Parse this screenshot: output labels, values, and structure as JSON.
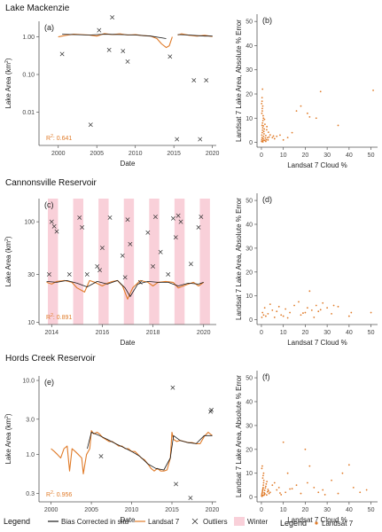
{
  "colors": {
    "landsat": "#e07b29",
    "insitu": "#1a1a1a",
    "outlier": "#333333",
    "winter": "#f9d0d9",
    "axis": "#555555"
  },
  "legend_main": {
    "title": "Legend",
    "items": [
      {
        "label": "Bias Corrected in situ",
        "kind": "line",
        "color": "#1a1a1a"
      },
      {
        "label": "Landsat 7",
        "kind": "line",
        "color": "#e07b29"
      },
      {
        "label": "Outliers",
        "kind": "x",
        "color": "#333333"
      },
      {
        "label": "Winter",
        "kind": "patch",
        "color": "#f9d0d9"
      }
    ]
  },
  "legend_right": {
    "title": "Legend",
    "items": [
      {
        "label": "Landsat 7",
        "kind": "dot",
        "color": "#e07b29"
      }
    ]
  },
  "chart_data": [
    {
      "panel": "(a)",
      "title": "Lake Mackenzie",
      "type": "line",
      "scale": "log",
      "xlabel": "Date",
      "ylabel": "Lake Area (km",
      "ylabel_sup": "2",
      "ylabel_end": ")",
      "r2_label": "R",
      "r2_value": ": 0.641",
      "xlim": [
        1997.5,
        2020.5
      ],
      "ylim": [
        0.0013,
        2.6
      ],
      "xticks": [
        2000,
        2005,
        2010,
        2015,
        2020
      ],
      "yticks": [
        1.0,
        0.1,
        0.01
      ],
      "ytick_labels": [
        "1.00",
        "0.10",
        "0.01"
      ],
      "series": [
        {
          "kind": "landsat",
          "segments": [
            {
              "x": [
                2000.0,
                2001.0,
                2002.0,
                2003.0,
                2004.0,
                2005.0,
                2006.0,
                2007.0,
                2008.0,
                2009.0,
                2010.0,
                2011.0,
                2012.0,
                2012.8,
                2013.4,
                2014.0,
                2014.4,
                2014.8
              ],
              "y": [
                1.0,
                1.1,
                1.18,
                1.15,
                1.12,
                1.05,
                1.22,
                1.15,
                1.2,
                1.12,
                1.15,
                1.08,
                1.05,
                0.9,
                0.65,
                0.52,
                0.58,
                1.0
              ]
            },
            {
              "x": [
                2015.5,
                2016.0,
                2017.0,
                2018.0,
                2019.0,
                2020.0
              ],
              "y": [
                1.12,
                1.2,
                1.1,
                1.05,
                1.1,
                1.02
              ]
            }
          ]
        },
        {
          "kind": "insitu",
          "segments": [
            {
              "x": [
                2000.5,
                2002.0,
                2004.0,
                2006.0,
                2008.0,
                2010.0,
                2012.0,
                2014.0
              ],
              "y": [
                1.18,
                1.15,
                1.12,
                1.18,
                1.15,
                1.12,
                1.05,
                0.9
              ]
            },
            {
              "x": [
                2015.5,
                2017.0,
                2019.0,
                2020.0
              ],
              "y": [
                1.15,
                1.12,
                1.05,
                1.05
              ]
            }
          ]
        }
      ],
      "outliers": {
        "x": [
          2000.5,
          2004.2,
          2005.3,
          2006.6,
          2007.0,
          2008.4,
          2009.0,
          2014.5,
          2015.4,
          2017.6,
          2018.4,
          2019.2
        ],
        "y": [
          0.35,
          0.0046,
          1.5,
          0.45,
          3.3,
          0.42,
          0.22,
          0.3,
          0.0019,
          0.07,
          0.0019,
          0.07
        ]
      }
    },
    {
      "panel": "(b)",
      "type": "scatter",
      "xlabel": "Landsat 7 Cloud %",
      "ylabel": "Landsat 7 Lake Area, Absolute % Error",
      "xlim": [
        -2,
        53
      ],
      "ylim": [
        -2,
        53
      ],
      "xticks": [
        0,
        10,
        20,
        30,
        40,
        50
      ],
      "yticks": [
        0,
        10,
        20,
        30,
        40,
        50
      ],
      "points": {
        "x": [
          0.1,
          0.2,
          0.3,
          0.2,
          0.4,
          0.5,
          0.6,
          0.3,
          0.8,
          1.0,
          1.2,
          0.5,
          0.7,
          0.9,
          1.5,
          1.8,
          2.0,
          0.2,
          0.4,
          0.6,
          1.1,
          1.3,
          2.5,
          0.3,
          0.5,
          0.8,
          3.0,
          3.5,
          4.0,
          5.0,
          6.0,
          0.2,
          0.6,
          1.2,
          2.2,
          2.8,
          7.0,
          8.5,
          10.0,
          12.0,
          14.0,
          16.0,
          18.0,
          21.0,
          22.0,
          25.0,
          27.0,
          35.0,
          51.0,
          0.4,
          1.6,
          2.4,
          3.2,
          5.5,
          0.9,
          1.4,
          2.0,
          0.1,
          0.3,
          0.7
        ],
        "y": [
          0.5,
          1.2,
          2.0,
          3.0,
          4.0,
          5.0,
          6.0,
          7.0,
          1.5,
          2.5,
          3.5,
          8.0,
          9.0,
          10.0,
          0.8,
          1.8,
          2.8,
          12.0,
          13.0,
          15.0,
          4.5,
          5.5,
          6.5,
          17.0,
          22.0,
          11.0,
          1.0,
          2.2,
          3.1,
          2.0,
          1.5,
          0.3,
          0.6,
          0.9,
          1.1,
          1.9,
          2.5,
          3.0,
          1.0,
          2.0,
          4.0,
          13.0,
          15.0,
          12.0,
          10.5,
          10.0,
          21.0,
          7.0,
          21.5,
          14.0,
          7.5,
          5.2,
          4.2,
          2.6,
          6.8,
          9.5,
          0.4,
          16.0,
          18.5,
          0.2
        ]
      }
    },
    {
      "panel": "(c)",
      "title": "Cannonsville Reservoir",
      "type": "line",
      "scale": "log",
      "xlabel": "Date",
      "ylabel": "Lake Area (km",
      "ylabel_sup": "2",
      "ylabel_end": ")",
      "r2_label": "R",
      "r2_value": ": 0.891",
      "xlim": [
        2013.5,
        2020.5
      ],
      "ylim": [
        9.5,
        170
      ],
      "xticks": [
        2014,
        2016,
        2018,
        2020
      ],
      "yticks": [
        100,
        30,
        10
      ],
      "ytick_labels": [
        "100",
        "30",
        "10"
      ],
      "winter": [
        [
          2013.85,
          2014.25
        ],
        [
          2014.85,
          2015.25
        ],
        [
          2015.85,
          2016.25
        ],
        [
          2016.85,
          2017.25
        ],
        [
          2017.85,
          2018.25
        ],
        [
          2018.85,
          2019.25
        ],
        [
          2019.85,
          2020.25
        ]
      ],
      "series": [
        {
          "kind": "landsat",
          "segments": [
            {
              "x": [
                2013.8,
                2014.0,
                2014.2,
                2014.5,
                2014.8,
                2015.0,
                2015.3,
                2015.5,
                2015.7,
                2016.0,
                2016.2,
                2016.4,
                2016.6,
                2016.8,
                2017.0,
                2017.2,
                2017.5,
                2017.8,
                2018.0,
                2018.2,
                2018.5,
                2018.8,
                2019.0,
                2019.3,
                2019.6,
                2019.8,
                2020.0
              ],
              "y": [
                25.0,
                24.0,
                25.5,
                26.0,
                25.0,
                22.0,
                20.0,
                26.0,
                25.0,
                23.0,
                24.5,
                25.5,
                26.0,
                23.0,
                17.0,
                22.0,
                26.0,
                25.0,
                23.0,
                25.0,
                25.5,
                25.0,
                22.0,
                23.5,
                25.0,
                23.0,
                25.0
              ]
            }
          ]
        },
        {
          "kind": "insitu",
          "segments": [
            {
              "x": [
                2013.8,
                2014.2,
                2014.6,
                2015.0,
                2015.4,
                2015.8,
                2016.2,
                2016.6,
                2016.9,
                2017.1,
                2017.4,
                2017.8,
                2018.2,
                2018.6,
                2019.0,
                2019.4,
                2019.8,
                2020.0
              ],
              "y": [
                25.5,
                25.0,
                26.0,
                24.5,
                22.5,
                25.5,
                24.0,
                26.0,
                22.0,
                18.0,
                24.0,
                25.5,
                25.0,
                25.0,
                23.0,
                24.5,
                24.0,
                25.0
              ]
            }
          ]
        }
      ],
      "outliers": {
        "x": [
          2013.9,
          2014.0,
          2014.1,
          2014.2,
          2014.7,
          2015.1,
          2015.2,
          2015.4,
          2015.8,
          2015.9,
          2016.0,
          2016.3,
          2016.8,
          2016.9,
          2017.0,
          2017.1,
          2017.5,
          2017.8,
          2018.0,
          2018.1,
          2018.3,
          2018.6,
          2018.8,
          2018.9,
          2019.0,
          2019.1,
          2019.5,
          2019.8,
          2019.9
        ],
        "y": [
          30,
          100,
          90,
          80,
          30,
          110,
          88,
          30,
          36,
          33,
          55,
          110,
          46,
          28,
          105,
          60,
          25,
          78,
          36,
          112,
          50,
          30,
          108,
          70,
          115,
          100,
          38,
          88,
          112
        ]
      }
    },
    {
      "panel": "(d)",
      "type": "scatter",
      "xlabel": "Landsat 7 Cloud %",
      "ylabel": "Landsat 7 Lake Area, Absolute % Error",
      "xlim": [
        -2,
        53
      ],
      "ylim": [
        -2,
        53
      ],
      "xticks": [
        0,
        10,
        20,
        30,
        40,
        50
      ],
      "yticks": [
        0,
        10,
        20,
        30,
        40,
        50
      ],
      "points": {
        "x": [
          0.2,
          0.5,
          1.0,
          1.5,
          2.0,
          3.0,
          5.0,
          6.0,
          7.0,
          8.0,
          9.0,
          10.0,
          11.0,
          13.0,
          15.0,
          17.0,
          18.0,
          20.0,
          21.0,
          22.0,
          23.0,
          24.0,
          25.0,
          26.0,
          28.0,
          30.0,
          32.0,
          33.0,
          35.0,
          40.0,
          41.0,
          50.0,
          4.0,
          12.0,
          19.0,
          27.0
        ],
        "y": [
          1.0,
          3.0,
          2.0,
          5.0,
          1.5,
          2.5,
          4.0,
          1.0,
          3.5,
          5.5,
          2.0,
          1.5,
          4.5,
          3.0,
          6.0,
          7.5,
          2.0,
          3.0,
          5.0,
          12.0,
          4.0,
          1.0,
          6.0,
          3.5,
          7.0,
          5.0,
          2.5,
          6.0,
          5.5,
          1.5,
          3.0,
          3.0,
          6.5,
          0.8,
          2.8,
          4.2
        ]
      }
    },
    {
      "panel": "(e)",
      "title": "Hords Creek Reservoir",
      "type": "line",
      "scale": "log",
      "xlabel": "Date",
      "ylabel": "Lake Area (km",
      "ylabel_sup": "2",
      "ylabel_end": ")",
      "r2_label": "R",
      "r2_value": ": 0.956",
      "xlim": [
        1998.5,
        2020.5
      ],
      "ylim": [
        0.23,
        11.5
      ],
      "xticks": [
        2000,
        2005,
        2010,
        2015,
        2020
      ],
      "yticks": [
        10.0,
        3.0,
        1.0,
        0.3
      ],
      "ytick_labels": [
        "10.0",
        "3.0",
        "1.0",
        "0.3"
      ],
      "series": [
        {
          "kind": "landsat",
          "segments": [
            {
              "x": [
                2000.0,
                2000.4,
                2000.8,
                2001.2,
                2001.6,
                2002.0,
                2002.3,
                2002.6,
                2003.0,
                2003.4,
                2003.8,
                2004.0,
                2004.4,
                2004.8,
                2005.0,
                2005.3,
                2005.7,
                2006.0,
                2006.4,
                2006.8,
                2007.2,
                2007.6,
                2008.0,
                2008.4,
                2008.8,
                2009.2,
                2009.6,
                2010.0,
                2010.4,
                2010.8,
                2011.2,
                2011.6,
                2012.0,
                2012.4,
                2012.8,
                2013.2,
                2013.6,
                2014.0,
                2014.4,
                2014.8,
                2015.0,
                2015.2,
                2015.6,
                2016.0,
                2016.5,
                2017.0,
                2017.5,
                2018.0,
                2018.5,
                2019.0,
                2019.5,
                2020.0
              ],
              "y": [
                1.2,
                1.1,
                1.0,
                0.9,
                1.2,
                1.3,
                0.6,
                1.2,
                1.1,
                1.0,
                0.9,
                0.55,
                1.0,
                1.2,
                2.1,
                1.9,
                2.0,
                1.9,
                1.7,
                1.6,
                1.5,
                1.5,
                1.4,
                1.3,
                1.3,
                1.2,
                1.2,
                1.1,
                1.1,
                1.0,
                0.9,
                0.85,
                0.75,
                0.65,
                0.6,
                0.65,
                0.6,
                0.6,
                0.62,
                0.9,
                2.0,
                1.6,
                1.5,
                1.55,
                1.5,
                1.45,
                1.45,
                1.4,
                1.4,
                1.75,
                2.0,
                1.8
              ]
            }
          ]
        },
        {
          "kind": "insitu",
          "segments": [
            {
              "x": [
                2004.5,
                2005.0,
                2006.0,
                2007.0,
                2008.0,
                2009.0,
                2010.0,
                2011.0,
                2012.0,
                2013.0,
                2014.0,
                2014.8,
                2015.2,
                2016.0,
                2017.0,
                2018.0,
                2019.0,
                2020.0
              ],
              "y": [
                1.2,
                2.0,
                1.8,
                1.6,
                1.4,
                1.25,
                1.1,
                0.95,
                0.75,
                0.65,
                0.62,
                0.9,
                1.8,
                1.55,
                1.45,
                1.4,
                1.8,
                1.8
              ]
            }
          ]
        }
      ],
      "outliers": {
        "x": [
          2006.2,
          2015.1,
          2015.5,
          2017.3,
          2019.8,
          2019.9
        ],
        "y": [
          0.95,
          8.0,
          0.4,
          0.26,
          3.8,
          4.0
        ]
      }
    },
    {
      "panel": "(f)",
      "type": "scatter",
      "xlabel": "Landsat 7 Cloud %",
      "ylabel": "Landsat 7 Lake Area, Absolute % Error",
      "xlim": [
        -2,
        53
      ],
      "ylim": [
        -2,
        53
      ],
      "xticks": [
        0,
        10,
        20,
        30,
        40,
        50
      ],
      "yticks": [
        0,
        10,
        20,
        30,
        40,
        50
      ],
      "points": {
        "x": [
          0.1,
          0.2,
          0.3,
          0.4,
          0.5,
          0.6,
          0.7,
          0.8,
          0.9,
          1.0,
          1.1,
          1.2,
          1.3,
          1.5,
          1.8,
          2.0,
          2.2,
          2.5,
          0.2,
          0.4,
          0.6,
          0.8,
          1.0,
          1.4,
          2.8,
          3.0,
          3.5,
          4.0,
          5.0,
          6.0,
          7.0,
          8.0,
          9.0,
          10.0,
          11.0,
          12.0,
          14.0,
          16.0,
          18.0,
          20.0,
          21.0,
          22.0,
          24.0,
          26.0,
          28.0,
          32.0,
          35.0,
          37.0,
          40.0,
          42.0,
          45.0,
          48.0,
          0.3,
          0.6,
          1.6,
          2.4,
          3.2,
          8.5,
          13.0,
          29.0
        ],
        "y": [
          0.5,
          1.0,
          1.5,
          2.0,
          2.5,
          3.0,
          3.5,
          4.0,
          5.0,
          6.0,
          7.0,
          0.8,
          1.8,
          2.8,
          3.8,
          4.5,
          5.5,
          6.5,
          12.0,
          13.0,
          8.0,
          9.0,
          10.0,
          1.2,
          2.2,
          3.2,
          1.5,
          2.0,
          5.0,
          6.0,
          3.0,
          4.0,
          1.0,
          23.0,
          2.0,
          10.0,
          3.5,
          5.0,
          1.5,
          20.0,
          6.0,
          13.0,
          4.0,
          2.0,
          3.0,
          7.0,
          1.5,
          10.0,
          13.5,
          4.0,
          2.0,
          3.0,
          0.3,
          0.7,
          1.4,
          0.9,
          2.6,
          1.7,
          3.4,
          1.0
        ]
      }
    }
  ]
}
